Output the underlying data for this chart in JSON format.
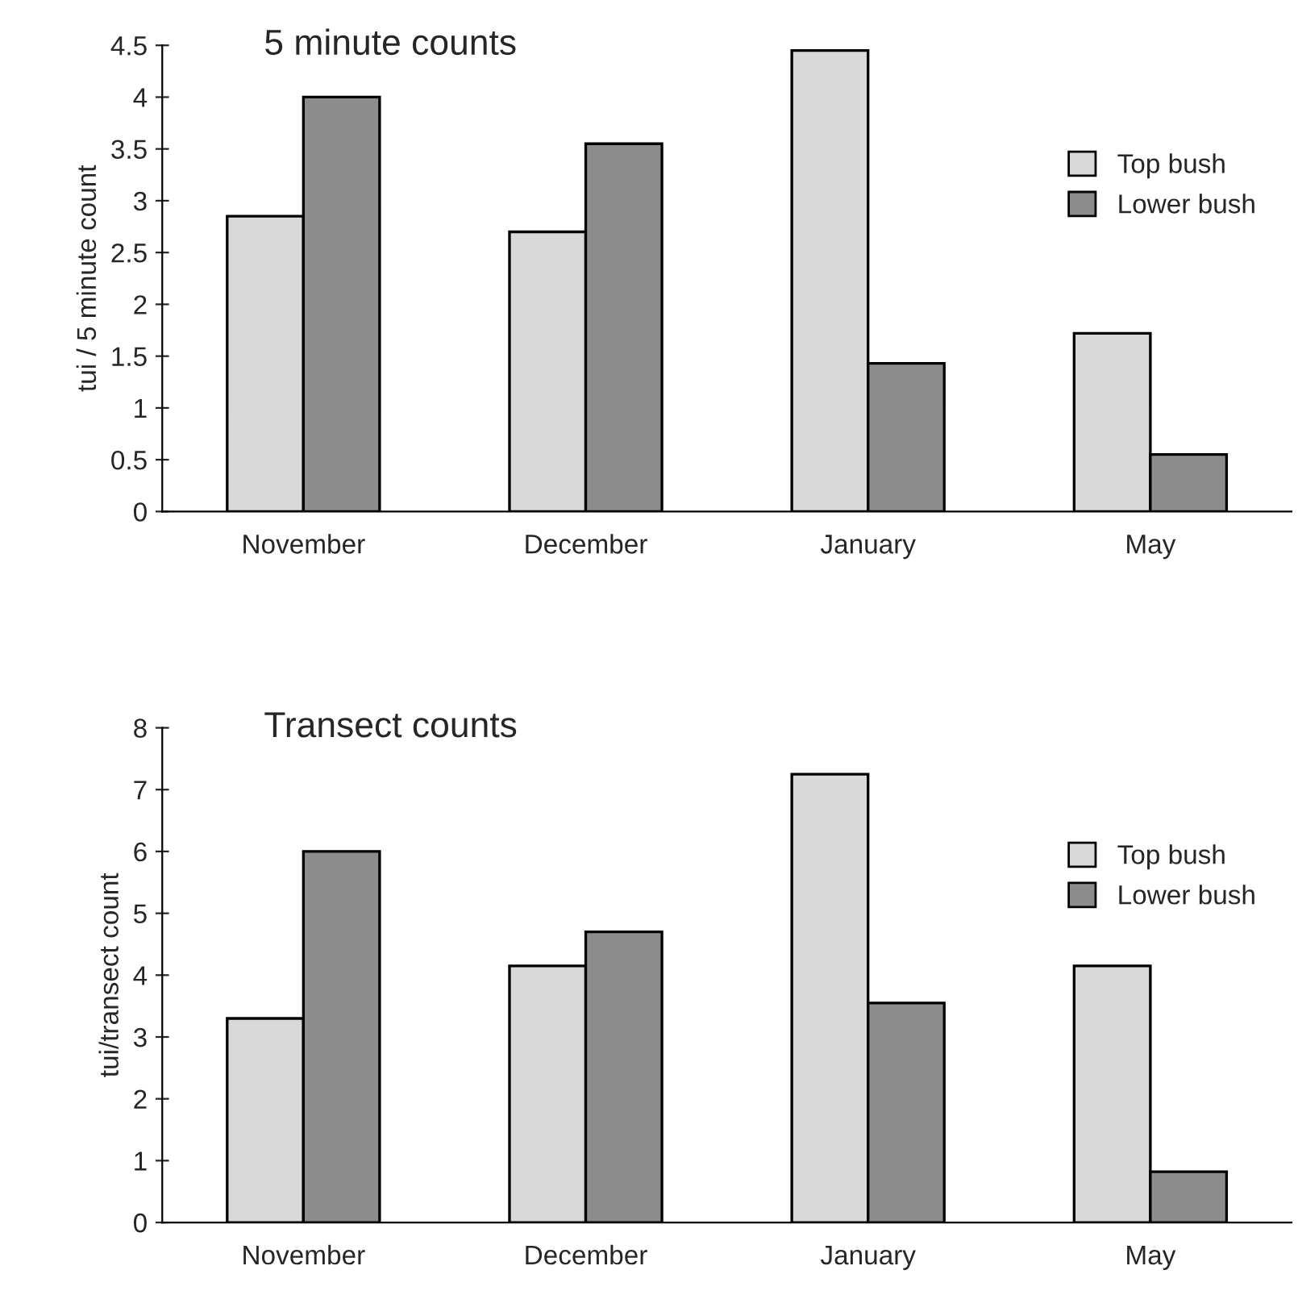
{
  "chart_data": [
    {
      "type": "bar",
      "title": "5 minute counts",
      "ylabel": "tui / 5 minute count",
      "categories": [
        "November",
        "December",
        "January",
        "May"
      ],
      "series": [
        {
          "name": "Top bush",
          "color": "#d9d9d9",
          "values": [
            2.85,
            2.7,
            4.45,
            1.72
          ]
        },
        {
          "name": "Lower bush",
          "color": "#8c8c8c",
          "values": [
            4.0,
            3.55,
            1.43,
            0.55
          ]
        }
      ],
      "ylim": [
        0,
        4.5
      ],
      "yticks": [
        0,
        0.5,
        1,
        1.5,
        2,
        2.5,
        3,
        3.5,
        4,
        4.5
      ],
      "legend": "right",
      "grid": false
    },
    {
      "type": "bar",
      "title": "Transect counts",
      "ylabel": "tui/transect count",
      "categories": [
        "November",
        "December",
        "January",
        "May"
      ],
      "series": [
        {
          "name": "Top bush",
          "color": "#d9d9d9",
          "values": [
            3.3,
            4.15,
            7.25,
            4.15
          ]
        },
        {
          "name": "Lower bush",
          "color": "#8c8c8c",
          "values": [
            6.0,
            4.7,
            3.55,
            0.82
          ]
        }
      ],
      "ylim": [
        0,
        8
      ],
      "yticks": [
        0,
        1,
        2,
        3,
        4,
        5,
        6,
        7,
        8
      ],
      "legend": "right",
      "grid": false
    }
  ]
}
